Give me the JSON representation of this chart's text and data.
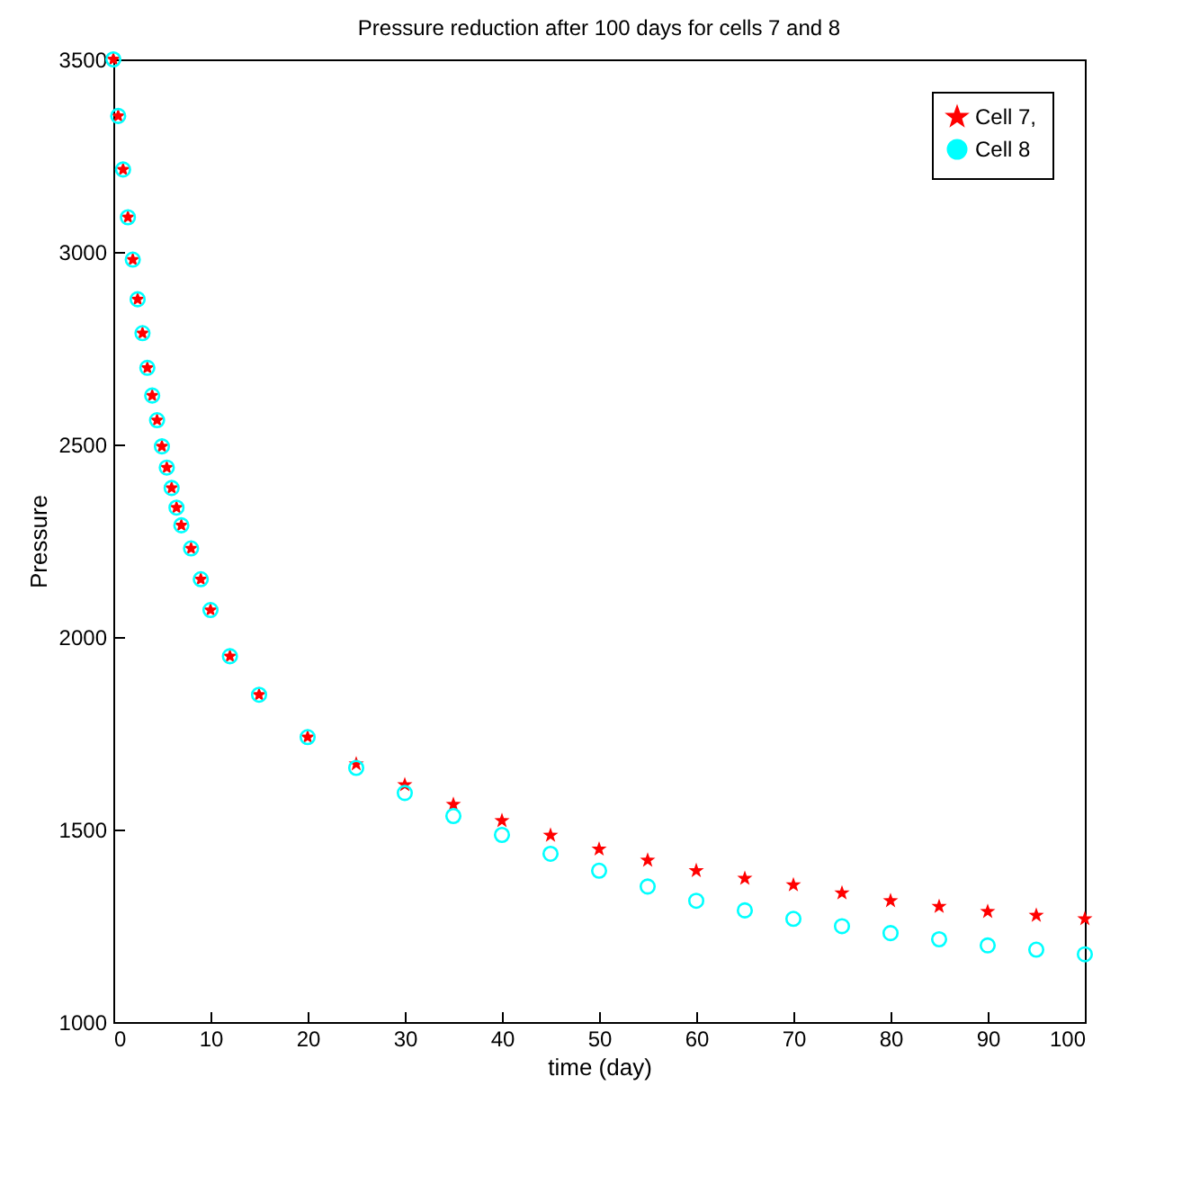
{
  "chart_data": {
    "type": "scatter",
    "title": "Pressure reduction after 100 days for cells 7 and 8",
    "xlabel": "time (day)",
    "ylabel": "Pressure",
    "x": [
      0,
      0.5,
      1,
      1.5,
      2,
      2.5,
      3,
      3.5,
      4,
      4.5,
      5,
      5.5,
      6,
      6.5,
      7,
      8,
      9,
      10,
      12,
      15,
      20,
      25,
      30,
      35,
      40,
      45,
      50,
      55,
      60,
      65,
      70,
      75,
      80,
      85,
      90,
      95,
      100
    ],
    "series": [
      {
        "name": "Cell 7,",
        "color": "#ff0000",
        "marker": "star",
        "values": [
          3500,
          3353,
          3214,
          3090,
          2980,
          2877,
          2789,
          2699,
          2627,
          2563,
          2495,
          2440,
          2387,
          2336,
          2290,
          2230,
          2150,
          2070,
          1950,
          1850,
          1740,
          1670,
          1616,
          1565,
          1523,
          1485,
          1449,
          1420,
          1393,
          1373,
          1356,
          1335,
          1315,
          1300,
          1287,
          1277,
          1268
        ]
      },
      {
        "name": "Cell 8",
        "color": "#00ffff",
        "marker": "circle",
        "values": [
          3500,
          3353,
          3214,
          3090,
          2980,
          2877,
          2789,
          2699,
          2627,
          2563,
          2495,
          2440,
          2387,
          2336,
          2290,
          2230,
          2150,
          2070,
          1950,
          1850,
          1740,
          1660,
          1595,
          1535,
          1486,
          1437,
          1393,
          1352,
          1315,
          1290,
          1268,
          1249,
          1231,
          1215,
          1199,
          1188,
          1176
        ]
      }
    ],
    "xlim": [
      0,
      100
    ],
    "xticks": [
      0,
      10,
      20,
      30,
      40,
      50,
      60,
      70,
      80,
      90,
      100
    ],
    "ylim": [
      1000,
      3500
    ],
    "yticks": [
      1000,
      1500,
      2000,
      2500,
      3000,
      3500
    ],
    "legend": "top right",
    "grid": false
  }
}
